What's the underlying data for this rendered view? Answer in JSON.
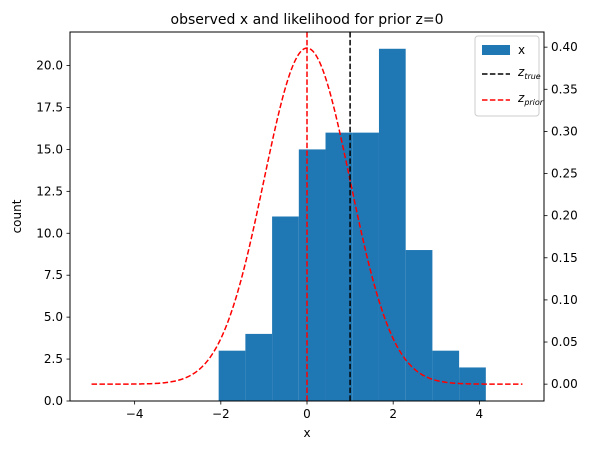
{
  "chart_data": {
    "type": "bar",
    "title": "observed x and likelihood for prior z=0",
    "xlabel": "x",
    "ylabel": "count",
    "xlim": [
      -5.5,
      5.5
    ],
    "ylim": [
      0,
      22
    ],
    "y2lim": [
      -0.02,
      0.418
    ],
    "x_ticks": [
      -4,
      -2,
      0,
      2,
      4
    ],
    "y_ticks": [
      0.0,
      2.5,
      5.0,
      7.5,
      10.0,
      12.5,
      15.0,
      17.5,
      20.0
    ],
    "y2_ticks": [
      0.0,
      0.05,
      0.1,
      0.15,
      0.2,
      0.25,
      0.3,
      0.35,
      0.4
    ],
    "histogram": {
      "name": "x",
      "color": "#1f77b4",
      "bin_edges": [
        -2.05,
        -1.43,
        -0.81,
        -0.19,
        0.43,
        1.05,
        1.67,
        2.29,
        2.91,
        3.53,
        4.15
      ],
      "counts": [
        3,
        4,
        11,
        15,
        16,
        16,
        21,
        9,
        3,
        2
      ]
    },
    "lines": [
      {
        "name": "z_true",
        "name_base": "z",
        "name_sub": "true",
        "type": "vline",
        "x": 1.0,
        "color": "#000000",
        "style": "dashed"
      },
      {
        "name": "z_prior",
        "name_base": "z",
        "name_sub": "prior",
        "type": "vline",
        "x": 0.0,
        "color": "#ff0000",
        "style": "dashed"
      }
    ],
    "likelihood_curve": {
      "axis": "right",
      "color": "#ff0000",
      "style": "dashed",
      "x_range": [
        -5,
        5
      ],
      "mean": 0,
      "std": 1
    },
    "legend": "top-right",
    "legend_entries": [
      {
        "label": "x",
        "kind": "patch",
        "color": "#1f77b4"
      },
      {
        "label_base": "z",
        "label_sub": "true",
        "kind": "dashed-line",
        "color": "#000000"
      },
      {
        "label_base": "z",
        "label_sub": "prior",
        "kind": "dashed-line",
        "color": "#ff0000"
      }
    ],
    "grid": false
  }
}
